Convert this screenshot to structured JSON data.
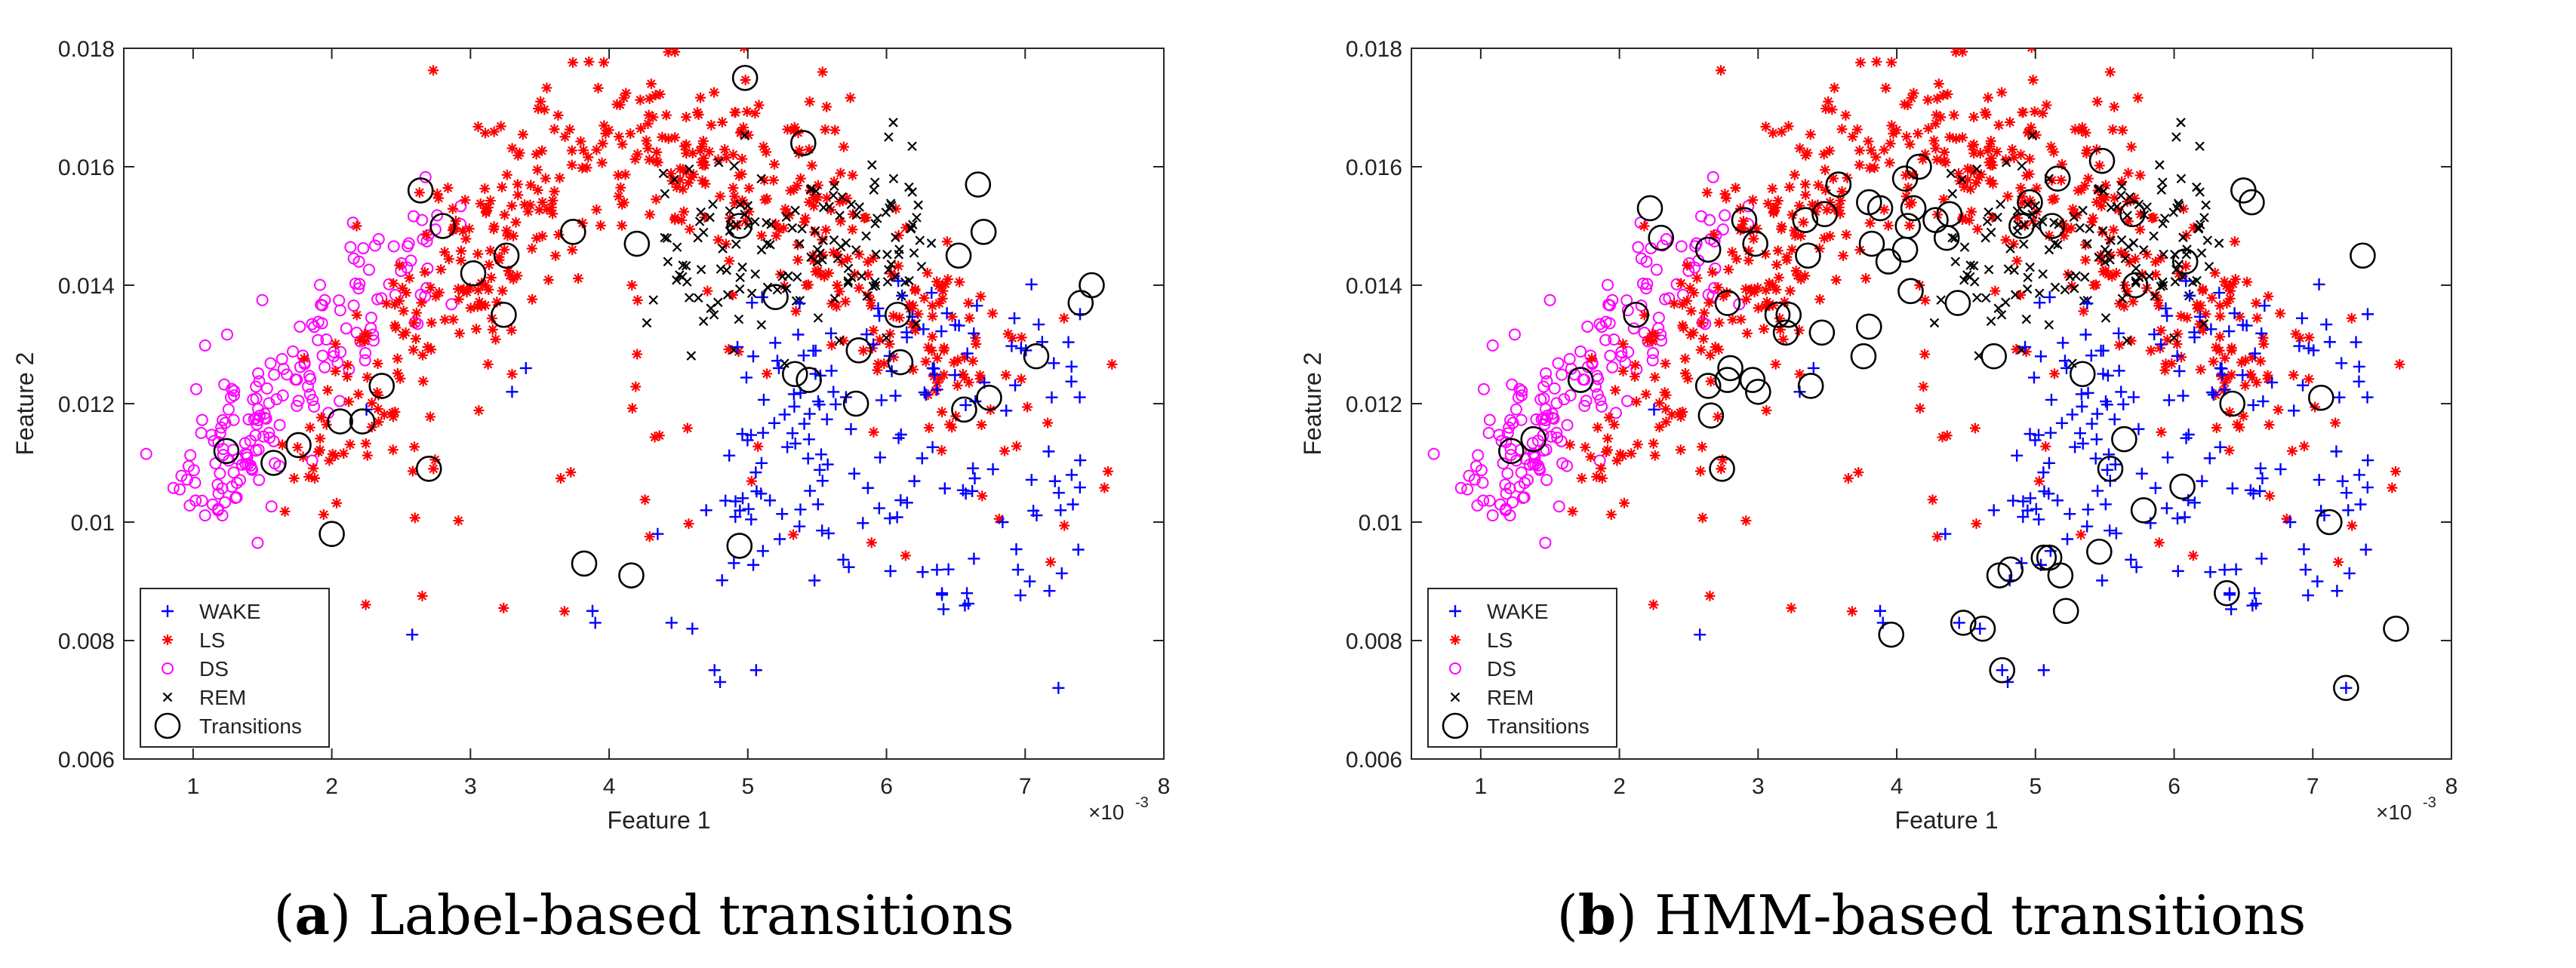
{
  "chart_data": [
    {
      "type": "scatter",
      "panel_id": "a",
      "xlabel": "Feature 1",
      "ylabel": "Feature 2",
      "x_multiplier_label": "×10",
      "x_multiplier_exp": "-3",
      "xlim": [
        0.5,
        8
      ],
      "ylim": [
        0.006,
        0.018
      ],
      "xticks": [
        "1",
        "2",
        "3",
        "4",
        "5",
        "6",
        "7",
        "8"
      ],
      "yticks": [
        "0.006",
        "0.008",
        "0.01",
        "0.012",
        "0.014",
        "0.016",
        "0.018"
      ],
      "legend_position": "bottom-left",
      "legend": [
        "WAKE",
        "LS",
        "DS",
        "REM",
        "Transitions"
      ],
      "colors": {
        "WAKE": "#0000ff",
        "LS": "#ff0000",
        "DS": "#ff00ff",
        "REM": "#000000",
        "Transitions": "#000000"
      },
      "caption_letter": "a",
      "caption_text": "Label-based transitions",
      "transitions": [
        [
          1.24,
          0.0112
        ],
        [
          1.58,
          0.011
        ],
        [
          1.76,
          0.0113
        ],
        [
          2.0,
          0.0098
        ],
        [
          2.06,
          0.0117
        ],
        [
          2.22,
          0.0117
        ],
        [
          2.36,
          0.0123
        ],
        [
          2.64,
          0.0156
        ],
        [
          2.7,
          0.0109
        ],
        [
          2.8,
          0.015
        ],
        [
          3.02,
          0.0142
        ],
        [
          3.24,
          0.0135
        ],
        [
          3.26,
          0.0145
        ],
        [
          3.74,
          0.0149
        ],
        [
          3.82,
          0.0093
        ],
        [
          4.16,
          0.0091
        ],
        [
          4.2,
          0.0147
        ],
        [
          4.94,
          0.015
        ],
        [
          4.94,
          0.0096
        ],
        [
          4.98,
          0.0175
        ],
        [
          5.2,
          0.0138
        ],
        [
          5.34,
          0.0125
        ],
        [
          5.4,
          0.0164
        ],
        [
          5.44,
          0.0124
        ],
        [
          5.78,
          0.012
        ],
        [
          5.8,
          0.0129
        ],
        [
          6.08,
          0.0135
        ],
        [
          6.1,
          0.0127
        ],
        [
          6.52,
          0.0145
        ],
        [
          6.56,
          0.0119
        ],
        [
          6.66,
          0.0157
        ],
        [
          6.7,
          0.0149
        ],
        [
          6.74,
          0.0121
        ],
        [
          7.08,
          0.0128
        ],
        [
          7.4,
          0.0137
        ],
        [
          7.48,
          0.014
        ]
      ]
    },
    {
      "type": "scatter",
      "panel_id": "b",
      "xlabel": "Feature 1",
      "ylabel": "Feature 2",
      "x_multiplier_label": "×10",
      "x_multiplier_exp": "-3",
      "xlim": [
        0.5,
        8
      ],
      "ylim": [
        0.006,
        0.018
      ],
      "xticks": [
        "1",
        "2",
        "3",
        "4",
        "5",
        "6",
        "7",
        "8"
      ],
      "yticks": [
        "0.006",
        "0.008",
        "0.01",
        "0.012",
        "0.014",
        "0.016",
        "0.018"
      ],
      "legend_position": "bottom-left",
      "legend": [
        "WAKE",
        "LS",
        "DS",
        "REM",
        "Transitions"
      ],
      "colors": {
        "WAKE": "#0000ff",
        "LS": "#ff0000",
        "DS": "#ff00ff",
        "REM": "#000000",
        "Transitions": "#000000"
      },
      "caption_letter": "b",
      "caption_text": "HMM-based transitions",
      "transitions": [
        [
          1.22,
          0.0112
        ],
        [
          1.38,
          0.0114
        ],
        [
          1.72,
          0.0124
        ],
        [
          2.12,
          0.0135
        ],
        [
          2.22,
          0.0153
        ],
        [
          2.3,
          0.0148
        ],
        [
          2.64,
          0.0123
        ],
        [
          2.64,
          0.0146
        ],
        [
          2.66,
          0.0118
        ],
        [
          2.74,
          0.0109
        ],
        [
          2.78,
          0.0137
        ],
        [
          2.78,
          0.0124
        ],
        [
          2.8,
          0.0126
        ],
        [
          2.9,
          0.0151
        ],
        [
          2.96,
          0.0124
        ],
        [
          2.98,
          0.0147
        ],
        [
          3.0,
          0.0122
        ],
        [
          3.14,
          0.0135
        ],
        [
          3.2,
          0.0132
        ],
        [
          3.22,
          0.0135
        ],
        [
          3.34,
          0.0151
        ],
        [
          3.36,
          0.0145
        ],
        [
          3.38,
          0.0123
        ],
        [
          3.46,
          0.0132
        ],
        [
          3.48,
          0.0152
        ],
        [
          3.58,
          0.0157
        ],
        [
          3.76,
          0.0128
        ],
        [
          3.8,
          0.0154
        ],
        [
          3.8,
          0.0133
        ],
        [
          3.82,
          0.0147
        ],
        [
          3.88,
          0.0153
        ],
        [
          3.94,
          0.0144
        ],
        [
          3.96,
          0.0081
        ],
        [
          4.06,
          0.0158
        ],
        [
          4.06,
          0.0146
        ],
        [
          4.08,
          0.015
        ],
        [
          4.1,
          0.0139
        ],
        [
          4.12,
          0.0153
        ],
        [
          4.16,
          0.016
        ],
        [
          4.28,
          0.0151
        ],
        [
          4.36,
          0.0148
        ],
        [
          4.38,
          0.0152
        ],
        [
          4.44,
          0.0137
        ],
        [
          4.48,
          0.0083
        ],
        [
          4.62,
          0.0082
        ],
        [
          4.7,
          0.0128
        ],
        [
          4.74,
          0.0091
        ],
        [
          4.76,
          0.0075
        ],
        [
          4.82,
          0.0092
        ],
        [
          4.9,
          0.015
        ],
        [
          4.96,
          0.0154
        ],
        [
          5.06,
          0.0094
        ],
        [
          5.1,
          0.0094
        ],
        [
          5.12,
          0.015
        ],
        [
          5.16,
          0.0158
        ],
        [
          5.18,
          0.0091
        ],
        [
          5.22,
          0.0085
        ],
        [
          5.34,
          0.0125
        ],
        [
          5.46,
          0.0095
        ],
        [
          5.48,
          0.0161
        ],
        [
          5.54,
          0.0109
        ],
        [
          5.64,
          0.0114
        ],
        [
          5.7,
          0.0152
        ],
        [
          5.72,
          0.014
        ],
        [
          5.78,
          0.0102
        ],
        [
          6.06,
          0.0106
        ],
        [
          6.08,
          0.0144
        ],
        [
          6.38,
          0.0088
        ],
        [
          6.42,
          0.012
        ],
        [
          6.5,
          0.0156
        ],
        [
          6.56,
          0.0154
        ],
        [
          7.06,
          0.0121
        ],
        [
          7.12,
          0.01
        ],
        [
          7.24,
          0.0072
        ],
        [
          7.36,
          0.0145
        ],
        [
          7.6,
          0.0082
        ]
      ]
    }
  ]
}
